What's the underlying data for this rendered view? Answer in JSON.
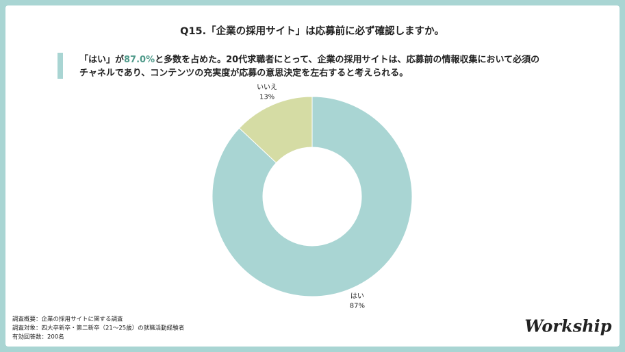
{
  "chart_data": {
    "type": "pie",
    "donut": true,
    "title": "Q15.「企業の採用サイト」は応募前に必ず確認しますか。",
    "categories": [
      "はい",
      "いいえ"
    ],
    "values": [
      87,
      13
    ],
    "value_labels": [
      "87%",
      "13%"
    ],
    "colors": [
      "#a9d5d3",
      "#d5dca4"
    ]
  },
  "headline": {
    "line1": [
      "「はい」が",
      "87.0%",
      "と多数を占めた。20代求職者にとって、企業の採用サイトは、応募前の情報収集において必須の"
    ],
    "line2": "チャネルであり、コンテンツの充実度が応募の意思決定を左右すると考えられる。"
  },
  "notes": [
    "調査概要：企業の採用サイトに関する調査",
    "調査対象：四大卒新卒・第二新卒（21〜25歳）の就職活動経験者",
    "有効回答数：200名"
  ],
  "logo": "Workship"
}
